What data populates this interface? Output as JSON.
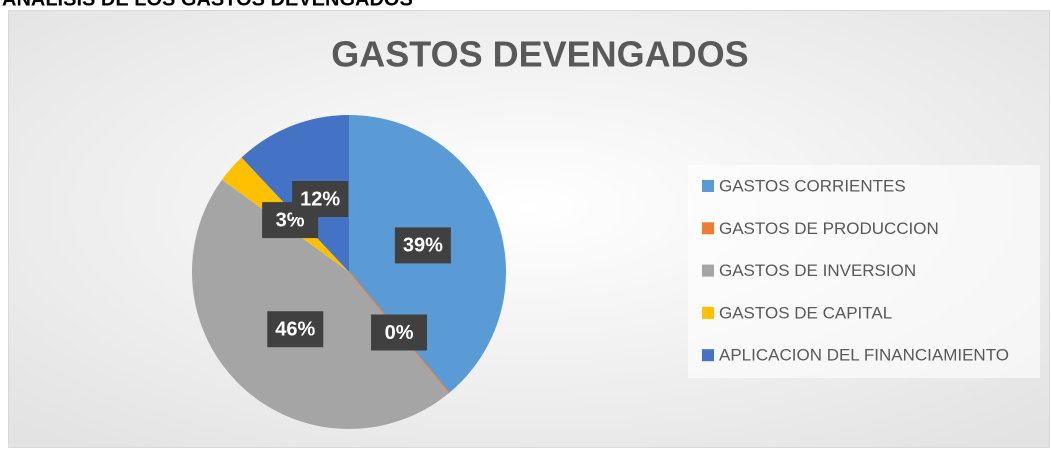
{
  "heading": "ANALISIS DE LOS GASTOS DEVENGADOS",
  "chart_data": {
    "type": "pie",
    "title": "GASTOS DEVENGADOS",
    "categories": [
      "GASTOS CORRIENTES",
      "GASTOS DE PRODUCCION",
      "GASTOS DE INVERSION",
      "GASTOS DE CAPITAL",
      "APLICACION DEL FINANCIAMIENTO"
    ],
    "values": [
      39,
      0,
      46,
      3,
      12
    ],
    "value_labels": [
      "39%",
      "0%",
      "46%",
      "3%",
      "12%"
    ],
    "colors": [
      "#5b9bd5",
      "#ed7d31",
      "#a5a5a5",
      "#ffc000",
      "#4472c4"
    ],
    "legend": "right"
  }
}
